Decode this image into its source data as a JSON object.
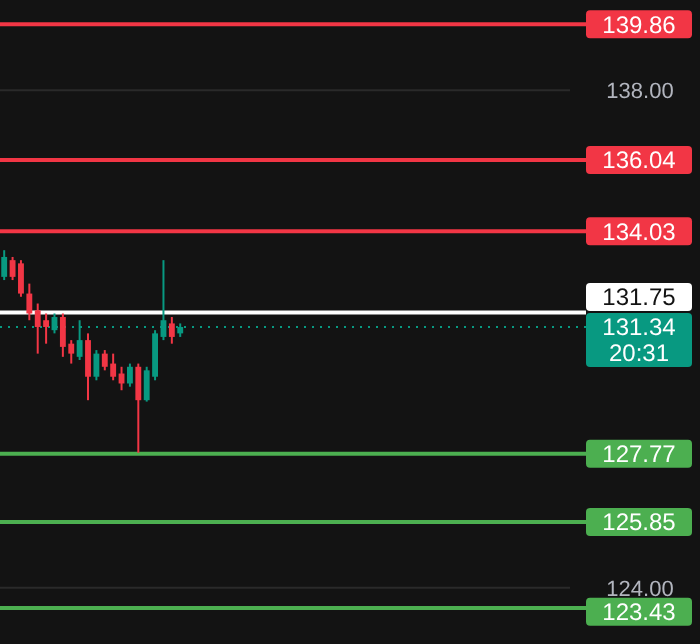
{
  "chart_data": {
    "type": "candlestick",
    "categories": [
      null,
      null,
      null,
      null,
      null,
      null,
      null,
      null,
      null,
      null,
      null,
      null,
      null,
      null,
      null,
      null,
      null,
      null,
      null,
      null,
      null,
      null,
      null,
      null,
      null,
      null,
      null,
      null,
      null,
      null,
      null,
      null,
      null,
      null,
      null,
      null,
      null,
      null,
      null,
      null,
      null,
      null,
      null,
      null,
      null,
      null,
      null,
      null,
      null,
      null,
      null,
      null,
      null,
      null,
      null,
      null,
      null,
      null,
      null,
      null,
      null,
      null,
      null,
      null,
      null,
      null,
      null,
      null
    ],
    "ohlc": [
      [
        132.75,
        133.5,
        132.66,
        133.31
      ],
      [
        133.22,
        133.31,
        132.66,
        132.75
      ],
      [
        133.13,
        133.22,
        132.19,
        132.28
      ],
      [
        132.28,
        132.56,
        131.53,
        131.72
      ],
      [
        131.81,
        132.0,
        130.59,
        131.34
      ],
      [
        131.53,
        131.72,
        130.87,
        131.34
      ],
      [
        131.25,
        131.72,
        131.16,
        131.62
      ],
      [
        131.62,
        131.72,
        130.5,
        130.78
      ],
      [
        130.87,
        130.97,
        130.31,
        130.59
      ],
      [
        130.5,
        131.53,
        130.41,
        130.97
      ],
      [
        130.97,
        131.16,
        129.28,
        129.94
      ],
      [
        129.94,
        130.69,
        129.84,
        130.59
      ],
      [
        130.59,
        130.69,
        130.12,
        130.22
      ],
      [
        130.31,
        130.59,
        129.84,
        129.94
      ],
      [
        130.03,
        130.22,
        129.56,
        129.75
      ],
      [
        129.75,
        130.31,
        129.66,
        130.22
      ],
      [
        130.22,
        130.31,
        127.8,
        129.28
      ],
      [
        129.28,
        130.22,
        129.24,
        130.12
      ],
      [
        129.94,
        131.25,
        129.84,
        131.16
      ],
      [
        131.06,
        133.22,
        130.97,
        131.53
      ],
      [
        131.44,
        131.62,
        130.87,
        131.06
      ],
      [
        131.16,
        131.44,
        131.06,
        131.34
      ],
      null,
      null,
      null,
      null,
      null,
      null,
      null,
      null,
      null,
      null,
      null,
      null,
      null,
      null,
      null,
      null,
      null,
      null,
      null,
      null,
      null,
      null,
      null,
      null,
      null,
      null,
      null,
      null,
      null,
      null,
      null,
      null,
      null,
      null,
      null,
      null,
      null,
      null,
      null,
      null,
      null,
      null,
      null,
      null,
      null,
      null
    ],
    "ylim": [
      122.42,
      140.54
    ],
    "yticks": [
      {
        "value": 124,
        "label": "124.00"
      },
      {
        "value": 138,
        "label": "138.00"
      }
    ],
    "grid": "y",
    "tick_labels": "y",
    "ref_lines": [
      {
        "axis": "y",
        "value": 139.86,
        "label": "139.86",
        "color": "#f23645"
      },
      {
        "axis": "y",
        "value": 136.04,
        "label": "136.04",
        "color": "#f23645"
      },
      {
        "axis": "y",
        "value": 134.03,
        "label": "134.03",
        "color": "#f23645"
      },
      {
        "axis": "y",
        "value": 131.75,
        "label": "131.75",
        "color": "#ffffff"
      },
      {
        "axis": "y",
        "value": 131.34,
        "label": "131.34",
        "color": "#089981",
        "line_style": "dotted"
      },
      {
        "axis": "y",
        "value": 127.77,
        "label": "127.77",
        "color": "#4caf50"
      },
      {
        "axis": "y",
        "value": 125.85,
        "label": "125.85",
        "color": "#4caf50"
      },
      {
        "axis": "y",
        "value": 123.43,
        "label": "123.43",
        "color": "#4caf50"
      }
    ],
    "annotations": [
      "20:31"
    ]
  }
}
